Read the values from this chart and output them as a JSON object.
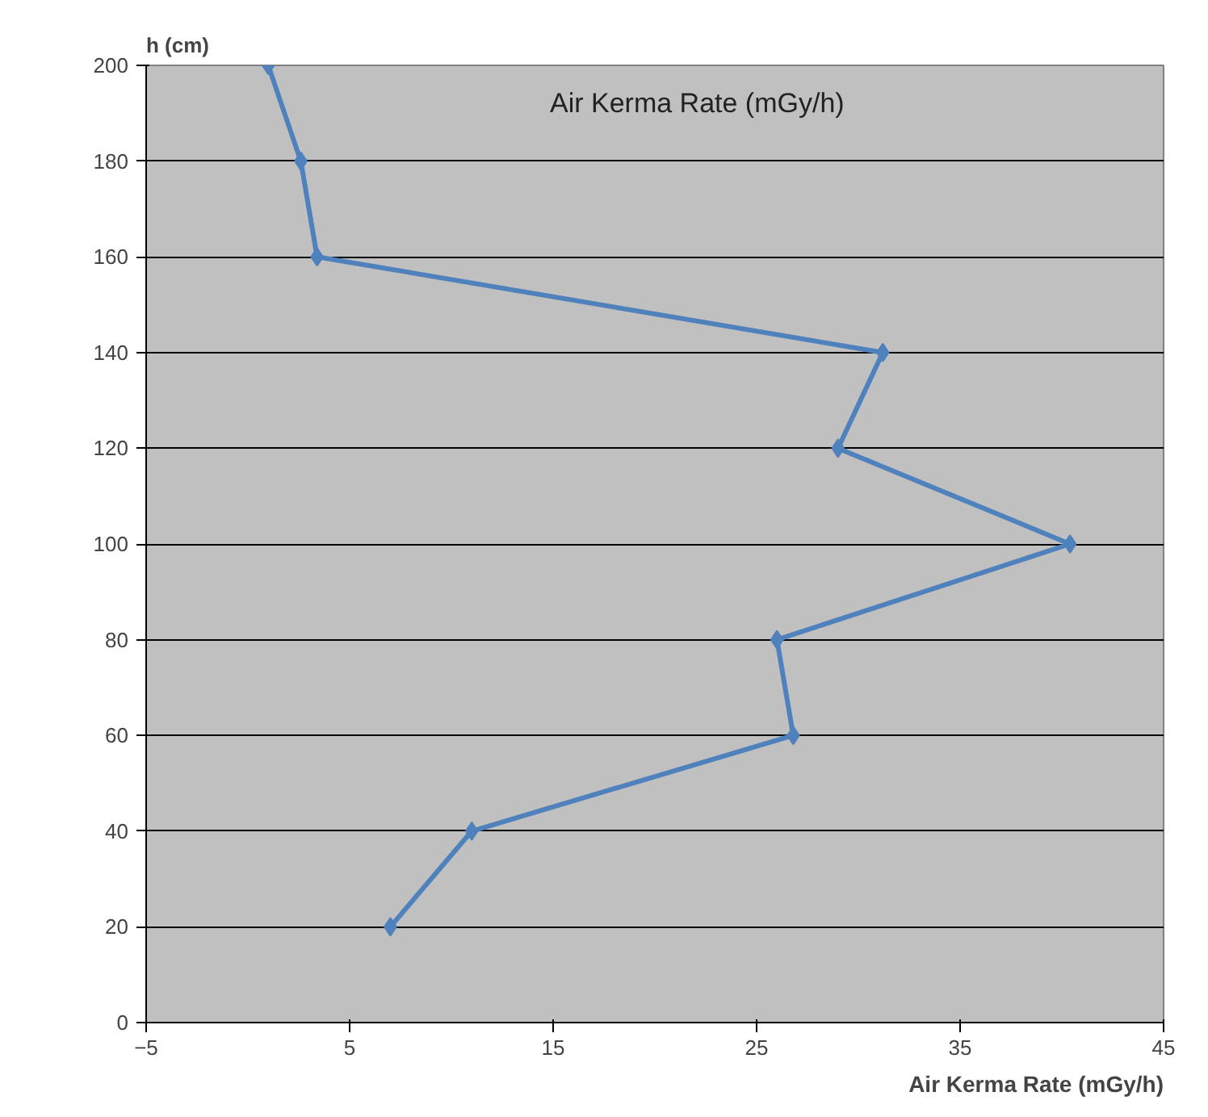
{
  "chart_data": {
    "type": "line",
    "title": "Air Kerma Rate (mGy/h)",
    "xlabel": "Air Kerma Rate (mGy/h)",
    "ylabel": "h (cm)",
    "x": [
      1.0,
      2.6,
      3.4,
      31.2,
      29.0,
      40.4,
      26.0,
      26.8,
      11.0,
      7.0
    ],
    "series": [
      {
        "color": "#4f81bd",
        "values": [
          200,
          180,
          160,
          140,
          120,
          100,
          80,
          60,
          40,
          20
        ]
      }
    ],
    "xlim": [
      -5,
      45
    ],
    "xticks": [
      -5,
      5,
      15,
      25,
      35,
      45
    ],
    "ylim": [
      0,
      200
    ],
    "yticks": [
      0,
      20,
      40,
      60,
      80,
      100,
      120,
      140,
      160,
      180,
      200
    ],
    "grid": "y",
    "marker": "diamond",
    "line_style": "solid"
  }
}
